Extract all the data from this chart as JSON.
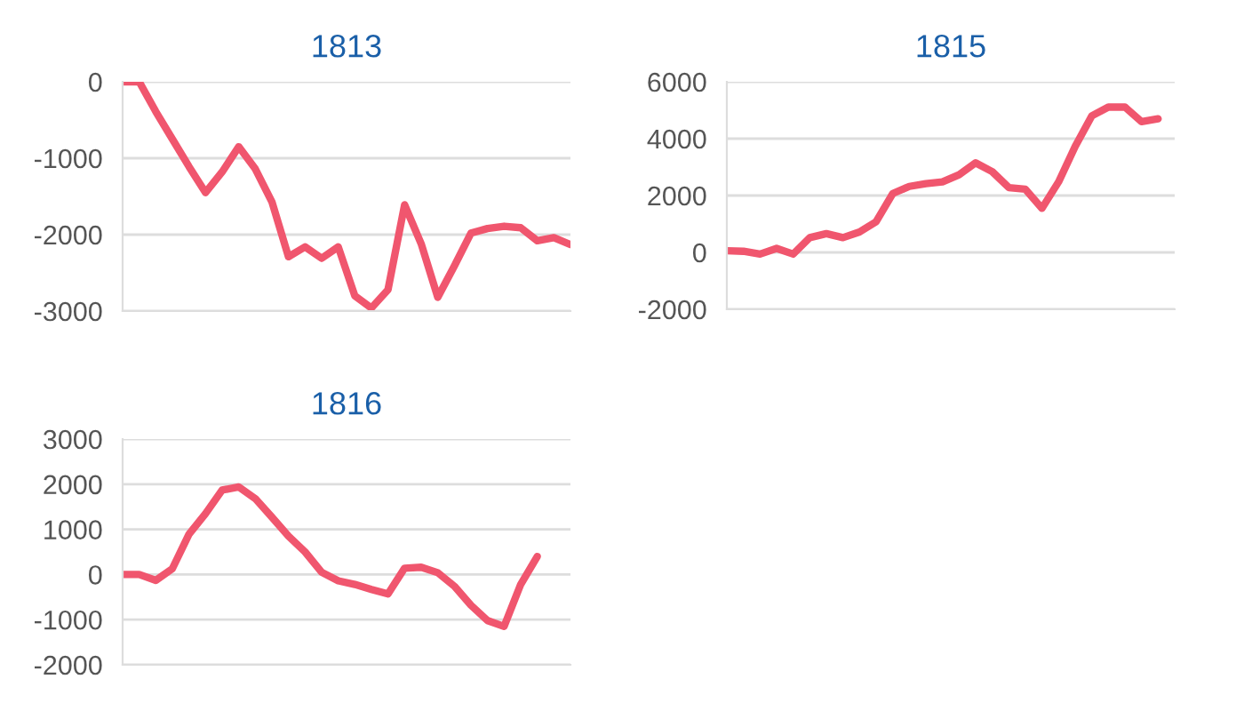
{
  "chart_data": [
    {
      "type": "line",
      "title": "1813",
      "categories": [
        null,
        null,
        null,
        null,
        null,
        null,
        null,
        null,
        null,
        null,
        null,
        null,
        null,
        null,
        null,
        null,
        null,
        null,
        null,
        null,
        null,
        null,
        null,
        null,
        null,
        null,
        null,
        null
      ],
      "series": [
        {
          "color": "#f0566e",
          "values": [
            0,
            0,
            -390,
            -750,
            -1110,
            -1450,
            -1180,
            -850,
            -1140,
            -1570,
            -2290,
            -2160,
            -2310,
            -2160,
            -2800,
            -2960,
            -2720,
            -1610,
            -2120,
            -2820,
            -2410,
            -1980,
            -1920,
            -1890,
            -1910,
            -2080,
            -2040,
            -2130
          ]
        }
      ],
      "ylim": [
        -3000,
        0
      ],
      "yticks": [
        -3000,
        -2000,
        -1000,
        0
      ],
      "grid": "y",
      "tick_labels": "y",
      "marker": "none",
      "line_style": "solid",
      "legend": false
    },
    {
      "type": "line",
      "title": "1815",
      "categories": [
        null,
        null,
        null,
        null,
        null,
        null,
        null,
        null,
        null,
        null,
        null,
        null,
        null,
        null,
        null,
        null,
        null,
        null,
        null,
        null,
        null,
        null,
        null,
        null,
        null,
        null,
        null,
        null
      ],
      "series": [
        {
          "color": "#f0566e",
          "values": [
            60,
            40,
            -60,
            140,
            -60,
            520,
            660,
            520,
            720,
            1080,
            2070,
            2320,
            2420,
            2480,
            2730,
            3150,
            2840,
            2280,
            2220,
            1550,
            2480,
            3730,
            4800,
            5110,
            5110,
            4600,
            4700,
            null
          ]
        }
      ],
      "ylim": [
        -2000,
        6000
      ],
      "yticks": [
        -2000,
        0,
        2000,
        4000,
        6000
      ],
      "grid": "y",
      "tick_labels": "y",
      "marker": "none",
      "line_style": "solid",
      "legend": false
    },
    {
      "type": "line",
      "title": "1816",
      "categories": [
        null,
        null,
        null,
        null,
        null,
        null,
        null,
        null,
        null,
        null,
        null,
        null,
        null,
        null,
        null,
        null,
        null,
        null,
        null,
        null,
        null,
        null,
        null,
        null,
        null,
        null,
        null,
        null
      ],
      "series": [
        {
          "color": "#f0566e",
          "values": [
            0,
            0,
            -130,
            130,
            890,
            1350,
            1870,
            1940,
            1680,
            1270,
            850,
            500,
            50,
            -140,
            -220,
            -330,
            -430,
            140,
            160,
            40,
            -260,
            -680,
            -1020,
            -1150,
            -220,
            400,
            null,
            null
          ]
        }
      ],
      "ylim": [
        -2000,
        3000
      ],
      "yticks": [
        -2000,
        -1000,
        0,
        1000,
        2000,
        3000
      ],
      "grid": "y",
      "tick_labels": "y",
      "marker": "none",
      "line_style": "solid",
      "legend": false
    }
  ]
}
